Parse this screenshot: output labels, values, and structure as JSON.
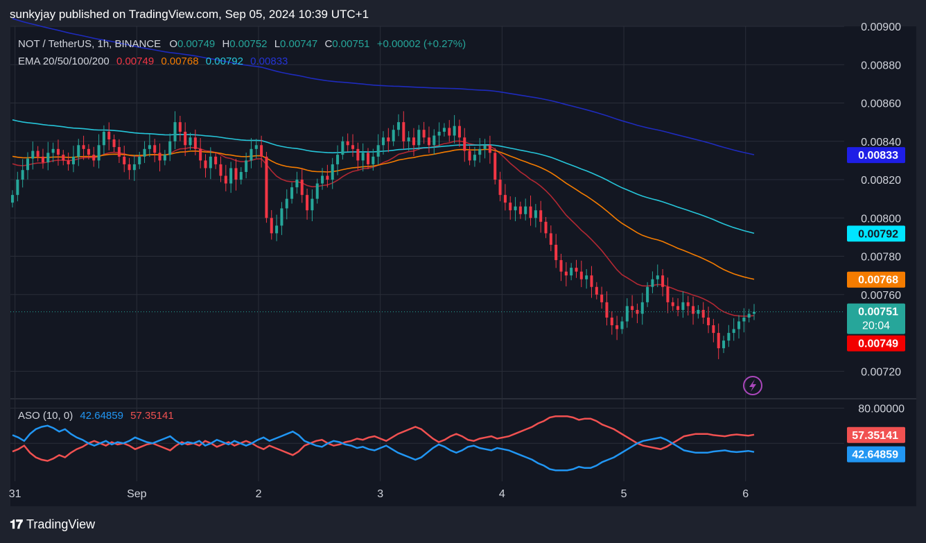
{
  "header": {
    "published": "sunkyjay published on TradingView.com, Sep 05, 2024 10:39 UTC+1"
  },
  "footer": {
    "brand": "TradingView",
    "logo": "tradingview-logo-icon"
  },
  "colors": {
    "background": "#1e222d",
    "panel": "#131722",
    "grid": "#2a2e39",
    "up": "#26a69a",
    "down": "#f23645",
    "ema20": "#b22833",
    "ema50": "#f57c00",
    "ema100": "#26c6da",
    "ema200": "#1e2bbe",
    "aso_bull": "#2196f3",
    "aso_bear": "#f15151"
  },
  "legend": {
    "symbol": "NOT / TetherUS, 1h, BINANCE",
    "o_label": "O",
    "o_value": "0.00749",
    "h_label": "H",
    "h_value": "0.00752",
    "l_label": "L",
    "l_value": "0.00747",
    "c_label": "C",
    "c_value": "0.00751",
    "change": "+0.00002 (+0.27%)",
    "ema_label": "EMA 20/50/100/200",
    "ema20": "0.00749",
    "ema50": "0.00768",
    "ema100": "0.00792",
    "ema200": "0.00833"
  },
  "aso_legend": {
    "label": "ASO (10, 0)",
    "bull": "42.64859",
    "bear": "57.35141"
  },
  "price_axis_labels": [
    "0.00900",
    "0.00880",
    "0.00860",
    "0.00840",
    "0.00820",
    "0.00800",
    "0.00780",
    "0.00760",
    "0.00720"
  ],
  "aso_axis_labels": [
    "80.00000"
  ],
  "x_axis_labels": [
    "31",
    "Sep",
    "2",
    "3",
    "4",
    "5",
    "6"
  ],
  "price_badges": {
    "ema200": "0.00833",
    "ema100": "0.00792",
    "ema50": "0.00768",
    "last": "0.00751",
    "countdown": "20:04",
    "ema20": "0.00749"
  },
  "aso_badges": {
    "bear": "57.35141",
    "bull": "42.64859"
  },
  "flash_icon": "lightning-icon",
  "chart_data": {
    "type": "candlestick",
    "symbol": "NOT / TetherUS",
    "interval": "1h",
    "exchange": "BINANCE",
    "ylim": [
      0.00706,
      0.009
    ],
    "x_ticks": [
      "31",
      "Sep",
      "2",
      "3",
      "4",
      "5",
      "6"
    ],
    "ohlc_last": {
      "open": 0.00749,
      "high": 0.00752,
      "low": 0.00747,
      "close": 0.00751
    },
    "close_series": [
      0.00812,
      0.0082,
      0.00825,
      0.00831,
      0.00835,
      0.00832,
      0.00829,
      0.00834,
      0.00836,
      0.00833,
      0.0083,
      0.00828,
      0.00832,
      0.00838,
      0.00836,
      0.00833,
      0.0083,
      0.00838,
      0.00845,
      0.00841,
      0.00837,
      0.00832,
      0.00828,
      0.00825,
      0.00828,
      0.00832,
      0.00836,
      0.00838,
      0.00834,
      0.0083,
      0.00833,
      0.0084,
      0.0085,
      0.00845,
      0.00838,
      0.00842,
      0.00836,
      0.0083,
      0.00826,
      0.00832,
      0.00828,
      0.00822,
      0.00818,
      0.00826,
      0.0082,
      0.00824,
      0.0083,
      0.00836,
      0.00838,
      0.00832,
      0.008,
      0.00792,
      0.00796,
      0.00805,
      0.0081,
      0.00816,
      0.0082,
      0.00812,
      0.00804,
      0.0081,
      0.00818,
      0.00822,
      0.0082,
      0.00828,
      0.00833,
      0.0084,
      0.00838,
      0.00836,
      0.0083,
      0.00834,
      0.00828,
      0.00832,
      0.00838,
      0.00842,
      0.0084,
      0.00846,
      0.0085,
      0.0084,
      0.00842,
      0.00838,
      0.00846,
      0.00842,
      0.00838,
      0.00843,
      0.00845,
      0.00847,
      0.00843,
      0.00848,
      0.00842,
      0.00835,
      0.0083,
      0.00833,
      0.00836,
      0.00838,
      0.00834,
      0.0082,
      0.00812,
      0.00808,
      0.00804,
      0.00806,
      0.00802,
      0.00806,
      0.008,
      0.00804,
      0.00798,
      0.00792,
      0.00786,
      0.00778,
      0.00772,
      0.0077,
      0.00774,
      0.00772,
      0.00768,
      0.0077,
      0.00764,
      0.0076,
      0.00756,
      0.00748,
      0.00744,
      0.00742,
      0.00746,
      0.00754,
      0.00752,
      0.0075,
      0.00756,
      0.00764,
      0.00768,
      0.0077,
      0.00764,
      0.00756,
      0.00754,
      0.00752,
      0.00756,
      0.00754,
      0.0075,
      0.00752,
      0.00748,
      0.00744,
      0.0074,
      0.00732,
      0.00736,
      0.0074,
      0.00742,
      0.00746,
      0.00748,
      0.0075,
      0.00751
    ],
    "series": [
      {
        "name": "EMA 20",
        "last": 0.00749
      },
      {
        "name": "EMA 50",
        "last": 0.00768
      },
      {
        "name": "EMA 100",
        "last": 0.00792
      },
      {
        "name": "EMA 200",
        "last": 0.00833
      }
    ],
    "aso": {
      "params": "(10, 0)",
      "ylim": [
        20,
        85
      ],
      "bull": [
        57,
        55,
        52,
        58,
        62,
        64,
        65,
        63,
        60,
        62,
        58,
        55,
        53,
        50,
        48,
        50,
        52,
        49,
        51,
        50,
        52,
        55,
        53,
        51,
        50,
        52,
        54,
        56,
        52,
        49,
        51,
        50,
        52,
        48,
        50,
        53,
        51,
        49,
        52,
        50,
        48,
        50,
        53,
        55,
        52,
        54,
        56,
        58,
        60,
        57,
        52,
        50,
        48,
        47,
        50,
        52,
        51,
        49,
        48,
        46,
        47,
        45,
        44,
        46,
        48,
        45,
        42,
        40,
        38,
        36,
        38,
        42,
        46,
        49,
        47,
        44,
        42,
        44,
        47,
        48,
        46,
        45,
        44,
        46,
        45,
        44,
        42,
        40,
        38,
        36,
        33,
        31,
        28,
        27,
        27,
        27,
        28,
        30,
        29,
        29,
        31,
        34,
        36,
        38,
        41,
        44,
        47,
        50,
        52,
        53,
        54,
        55,
        53,
        50,
        47,
        44,
        43,
        42,
        42,
        42,
        43,
        43.5,
        44,
        43,
        42.5,
        43,
        43.5,
        42.65
      ],
      "bear": [
        43,
        45,
        48,
        42,
        38,
        36,
        35,
        37,
        40,
        38,
        42,
        45,
        47,
        50,
        52,
        50,
        48,
        51,
        49,
        50,
        48,
        45,
        47,
        49,
        50,
        48,
        46,
        44,
        48,
        51,
        49,
        50,
        48,
        52,
        50,
        47,
        49,
        51,
        48,
        50,
        52,
        50,
        47,
        45,
        48,
        46,
        44,
        42,
        40,
        43,
        48,
        50,
        52,
        53,
        50,
        48,
        49,
        51,
        52,
        54,
        53,
        55,
        56,
        54,
        52,
        55,
        58,
        60,
        62,
        64,
        62,
        58,
        54,
        51,
        53,
        56,
        58,
        56,
        53,
        52,
        54,
        55,
        56,
        54,
        55,
        56,
        58,
        60,
        62,
        64,
        67,
        69,
        72,
        73,
        73,
        73,
        72,
        70,
        71,
        71,
        69,
        66,
        64,
        62,
        59,
        56,
        53,
        50,
        48,
        47,
        46,
        45,
        47,
        50,
        53,
        56,
        57,
        58,
        58,
        58,
        57,
        56.5,
        56,
        57,
        57.5,
        57,
        56.5,
        57.35
      ]
    }
  }
}
